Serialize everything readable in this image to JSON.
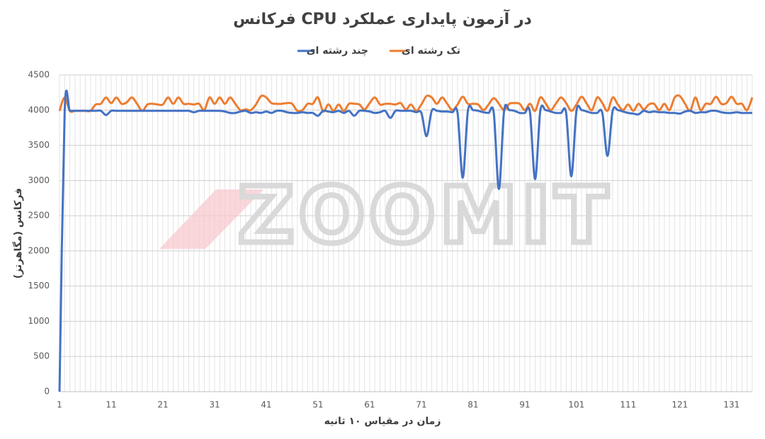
{
  "chart_data": {
    "type": "line",
    "title": "فرکانس CPU در آزمون پایداری عملکرد",
    "x_label": "زمان در مقیاس ۱۰ ثانیه",
    "y_label": "فرکانس (مگاهرتز)",
    "watermark": "ZOOMIT",
    "x": [
      1,
      2,
      3,
      4,
      5,
      6,
      7,
      8,
      9,
      10,
      11,
      12,
      13,
      14,
      15,
      16,
      17,
      18,
      19,
      20,
      21,
      22,
      23,
      24,
      25,
      26,
      27,
      28,
      29,
      30,
      31,
      32,
      33,
      34,
      35,
      36,
      37,
      38,
      39,
      40,
      41,
      42,
      43,
      44,
      45,
      46,
      47,
      48,
      49,
      50,
      51,
      52,
      53,
      54,
      55,
      56,
      57,
      58,
      59,
      60,
      61,
      62,
      63,
      64,
      65,
      66,
      67,
      68,
      69,
      70,
      71,
      72,
      73,
      74,
      75,
      76,
      77,
      78,
      79,
      80,
      81,
      82,
      83,
      84,
      85,
      86,
      87,
      88,
      89,
      90,
      91,
      92,
      93,
      94,
      95,
      96,
      97,
      98,
      99,
      100,
      101,
      102,
      103,
      104,
      105,
      106,
      107,
      108,
      109,
      110,
      111,
      112,
      113,
      114,
      115,
      116,
      117,
      118,
      119,
      120,
      121,
      122,
      123,
      124,
      125,
      126,
      127,
      128,
      129,
      130,
      131,
      132,
      133,
      134,
      135
    ],
    "series": [
      {
        "name": "تک رشته ای",
        "color": "#ed7d31",
        "values": [
          3990,
          4180,
          3990,
          3990,
          3990,
          3990,
          3990,
          4080,
          4090,
          4180,
          4100,
          4180,
          4090,
          4110,
          4180,
          4090,
          3990,
          4080,
          4090,
          4080,
          4080,
          4180,
          4090,
          4180,
          4090,
          4090,
          4080,
          4090,
          4000,
          4180,
          4090,
          4180,
          4090,
          4180,
          4090,
          4000,
          4010,
          4000,
          4080,
          4200,
          4180,
          4100,
          4090,
          4090,
          4100,
          4090,
          3990,
          4000,
          4090,
          4090,
          4180,
          3980,
          4080,
          3990,
          4080,
          3990,
          4090,
          4090,
          4080,
          4010,
          4100,
          4180,
          4080,
          4090,
          4090,
          4080,
          4100,
          4010,
          4080,
          3990,
          4080,
          4200,
          4180,
          4090,
          4180,
          4090,
          4000,
          4080,
          4190,
          4090,
          4090,
          4080,
          4000,
          4080,
          4170,
          4090,
          4000,
          4090,
          4100,
          4090,
          4000,
          4090,
          3990,
          4180,
          4100,
          4000,
          4090,
          4180,
          4100,
          3990,
          4080,
          4190,
          4090,
          4000,
          4180,
          4100,
          3990,
          4180,
          4080,
          4000,
          4080,
          3990,
          4090,
          4010,
          4080,
          4090,
          4000,
          4090,
          4000,
          4180,
          4200,
          4090,
          3990,
          4180,
          4000,
          4090,
          4090,
          4190,
          4090,
          4100,
          4190,
          4090,
          4090,
          4000,
          4180
        ]
      },
      {
        "name": "چند رشته ای",
        "color": "#4472c4",
        "values": [
          0,
          3980,
          3990,
          3990,
          3990,
          3990,
          3990,
          3990,
          3990,
          3930,
          3990,
          3990,
          3990,
          3990,
          3990,
          3990,
          3990,
          3990,
          3990,
          3990,
          3990,
          3990,
          3990,
          3990,
          3990,
          3990,
          3970,
          3990,
          3990,
          3990,
          3990,
          3990,
          3980,
          3960,
          3960,
          3980,
          3990,
          3960,
          3970,
          3960,
          3980,
          3960,
          3990,
          3990,
          3970,
          3960,
          3960,
          3970,
          3960,
          3960,
          3920,
          3990,
          3980,
          3970,
          3990,
          3960,
          3990,
          3920,
          3990,
          3990,
          3980,
          3960,
          3970,
          3990,
          3890,
          3990,
          3990,
          3990,
          3990,
          3970,
          3960,
          3630,
          3990,
          3990,
          3980,
          3980,
          3970,
          3960,
          3040,
          3990,
          4000,
          3990,
          3970,
          3960,
          3960,
          2880,
          3990,
          4000,
          3990,
          3960,
          3960,
          3970,
          3020,
          3990,
          4000,
          3980,
          3960,
          3960,
          3960,
          3060,
          3990,
          4000,
          3980,
          3960,
          3960,
          3960,
          3350,
          3990,
          4000,
          3980,
          3960,
          3950,
          3940,
          3990,
          3970,
          3980,
          3970,
          3970,
          3960,
          3960,
          3950,
          3980,
          3990,
          3960,
          3970,
          3970,
          3990,
          3990,
          3970,
          3960,
          3960,
          3970,
          3960,
          3960,
          3960
        ]
      }
    ],
    "xlim": [
      1,
      135
    ],
    "xticks": [
      1,
      11,
      21,
      31,
      41,
      51,
      61,
      71,
      81,
      91,
      101,
      111,
      121,
      131
    ],
    "ylim": [
      0,
      4500
    ],
    "yticks": [
      0,
      500,
      1000,
      1500,
      2000,
      2500,
      3000,
      3500,
      4000,
      4500
    ],
    "grid": true
  }
}
